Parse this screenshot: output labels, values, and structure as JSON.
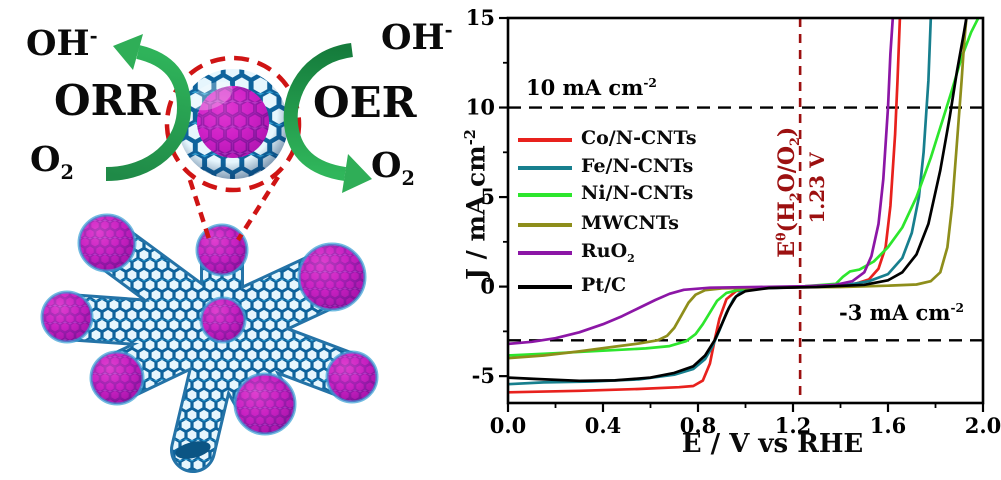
{
  "left_panel": {
    "oh_base": "OH",
    "oh_sup": "-",
    "orr_label": "ORR",
    "oer_label": "OER",
    "o2_base": "O",
    "o2_sub": "2",
    "colors": {
      "arrow_green": "#2aa352",
      "callout_red": "#cf1414",
      "nanotube_blue": "#2d9ace",
      "particle_magenta": "#cf16be"
    }
  },
  "chart_data": {
    "type": "line",
    "title": "",
    "xlabel": "E / V vs RHE",
    "ylabel": "J / mA cm⁻²",
    "ylabel_base": "J / mA cm",
    "ylabel_sup": "-2",
    "xlim": [
      0,
      2.0
    ],
    "ylim": [
      -6.5,
      15
    ],
    "grid": false,
    "legend_position": "upper-left-inside",
    "x_major_ticks": [
      0.0,
      0.4,
      0.8,
      1.2,
      1.6,
      2.0
    ],
    "x_tick_labels": [
      "0.0",
      "0.4",
      "0.8",
      "1.2",
      "1.6",
      "2.0"
    ],
    "x_minor_ticks": [
      0.2,
      0.6,
      1.0,
      1.4,
      1.8
    ],
    "y_major_ticks": [
      15,
      10,
      5,
      0,
      -5
    ],
    "y_tick_labels": [
      "15",
      "10",
      "5",
      "0",
      "-5"
    ],
    "y_minor_ticks": [
      12.5,
      7.5,
      2.5,
      -2.5
    ],
    "hlines": [
      {
        "j": 10,
        "color": "#000000",
        "label": "10 mA cm⁻²",
        "label_base": "10 mA cm",
        "label_sup": "-2"
      },
      {
        "j": -3,
        "color": "#000000",
        "label": "-3 mA cm⁻²",
        "label_base": "-3 mA cm",
        "label_sup": "-2"
      }
    ],
    "vline": {
      "e": 1.23,
      "color": "#9c1010",
      "label": "Eθ(H₂O/O₂)",
      "label_e": "E",
      "label_sup": "θ",
      "label_p1": "(H",
      "label_s1": "2",
      "label_p2": "O/O",
      "label_s2": "2",
      "label_p3": ")",
      "voltage_label": "1.23 V"
    },
    "series": [
      {
        "name": "Co/N-CNTs",
        "color": "#e8211d",
        "points": [
          [
            0,
            -5.9
          ],
          [
            0.3,
            -5.82
          ],
          [
            0.55,
            -5.72
          ],
          [
            0.72,
            -5.62
          ],
          [
            0.78,
            -5.55
          ],
          [
            0.82,
            -5.25
          ],
          [
            0.85,
            -4.3
          ],
          [
            0.87,
            -3.0
          ],
          [
            0.89,
            -1.8
          ],
          [
            0.92,
            -0.7
          ],
          [
            0.96,
            -0.25
          ],
          [
            1.02,
            -0.1
          ],
          [
            1.2,
            -0.04
          ],
          [
            1.35,
            0
          ],
          [
            1.45,
            0.1
          ],
          [
            1.52,
            0.4
          ],
          [
            1.56,
            1.0
          ],
          [
            1.59,
            2.2
          ],
          [
            1.61,
            4.5
          ],
          [
            1.63,
            8.5
          ],
          [
            1.64,
            11.5
          ],
          [
            1.65,
            15
          ]
        ]
      },
      {
        "name": "Fe/N-CNTs",
        "color": "#177f8e",
        "points": [
          [
            0,
            -5.45
          ],
          [
            0.15,
            -5.35
          ],
          [
            0.35,
            -5.3
          ],
          [
            0.55,
            -5.18
          ],
          [
            0.7,
            -4.92
          ],
          [
            0.78,
            -4.6
          ],
          [
            0.83,
            -4.05
          ],
          [
            0.86,
            -3.35
          ],
          [
            0.89,
            -2.45
          ],
          [
            0.92,
            -1.45
          ],
          [
            0.95,
            -0.7
          ],
          [
            0.98,
            -0.3
          ],
          [
            1.05,
            -0.1
          ],
          [
            1.25,
            -0.02
          ],
          [
            1.42,
            0.08
          ],
          [
            1.52,
            0.3
          ],
          [
            1.6,
            0.7
          ],
          [
            1.66,
            1.6
          ],
          [
            1.7,
            3.0
          ],
          [
            1.73,
            5.0
          ],
          [
            1.75,
            7.5
          ],
          [
            1.77,
            11.5
          ],
          [
            1.78,
            15
          ]
        ]
      },
      {
        "name": "Ni/N-CNTs",
        "color": "#2de62d",
        "points": [
          [
            0,
            -3.85
          ],
          [
            0.2,
            -3.72
          ],
          [
            0.4,
            -3.58
          ],
          [
            0.58,
            -3.45
          ],
          [
            0.68,
            -3.32
          ],
          [
            0.75,
            -3.05
          ],
          [
            0.79,
            -2.65
          ],
          [
            0.82,
            -2.1
          ],
          [
            0.85,
            -1.45
          ],
          [
            0.88,
            -0.8
          ],
          [
            0.92,
            -0.35
          ],
          [
            0.98,
            -0.15
          ],
          [
            1.1,
            -0.05
          ],
          [
            1.25,
            0.02
          ],
          [
            1.38,
            0.15
          ],
          [
            1.41,
            0.55
          ],
          [
            1.44,
            0.85
          ],
          [
            1.48,
            0.95
          ],
          [
            1.54,
            1.4
          ],
          [
            1.6,
            2.2
          ],
          [
            1.66,
            3.3
          ],
          [
            1.72,
            5.0
          ],
          [
            1.78,
            7.2
          ],
          [
            1.83,
            9.3
          ],
          [
            1.87,
            11.0
          ],
          [
            1.91,
            12.8
          ],
          [
            1.95,
            14.2
          ],
          [
            1.98,
            15
          ]
        ]
      },
      {
        "name": "MWCNTs",
        "color": "#8e8e1b",
        "points": [
          [
            0,
            -4.0
          ],
          [
            0.15,
            -3.85
          ],
          [
            0.3,
            -3.62
          ],
          [
            0.45,
            -3.35
          ],
          [
            0.55,
            -3.18
          ],
          [
            0.63,
            -3.0
          ],
          [
            0.67,
            -2.75
          ],
          [
            0.7,
            -2.3
          ],
          [
            0.73,
            -1.6
          ],
          [
            0.76,
            -0.9
          ],
          [
            0.79,
            -0.45
          ],
          [
            0.83,
            -0.2
          ],
          [
            0.9,
            -0.1
          ],
          [
            1.1,
            -0.05
          ],
          [
            1.4,
            -0.02
          ],
          [
            1.6,
            0.05
          ],
          [
            1.72,
            0.12
          ],
          [
            1.78,
            0.3
          ],
          [
            1.82,
            0.8
          ],
          [
            1.85,
            2.2
          ],
          [
            1.87,
            4.5
          ],
          [
            1.89,
            8.0
          ],
          [
            1.91,
            11.5
          ],
          [
            1.92,
            13.5
          ],
          [
            1.93,
            15
          ]
        ]
      },
      {
        "name": "RuO",
        "name_sub": "2",
        "color": "#8c16a6",
        "points": [
          [
            0,
            -3.2
          ],
          [
            0.1,
            -3.08
          ],
          [
            0.2,
            -2.88
          ],
          [
            0.3,
            -2.55
          ],
          [
            0.4,
            -2.1
          ],
          [
            0.48,
            -1.65
          ],
          [
            0.55,
            -1.2
          ],
          [
            0.62,
            -0.75
          ],
          [
            0.68,
            -0.4
          ],
          [
            0.74,
            -0.18
          ],
          [
            0.85,
            -0.06
          ],
          [
            1.05,
            -0.02
          ],
          [
            1.25,
            0.02
          ],
          [
            1.38,
            0.1
          ],
          [
            1.45,
            0.3
          ],
          [
            1.5,
            0.8
          ],
          [
            1.53,
            1.7
          ],
          [
            1.56,
            3.5
          ],
          [
            1.58,
            6.0
          ],
          [
            1.6,
            10.0
          ],
          [
            1.61,
            13.0
          ],
          [
            1.62,
            15
          ]
        ]
      },
      {
        "name": "Pt/C",
        "color": "#000000",
        "points": [
          [
            0,
            -5.08
          ],
          [
            0.12,
            -5.16
          ],
          [
            0.3,
            -5.26
          ],
          [
            0.45,
            -5.24
          ],
          [
            0.6,
            -5.08
          ],
          [
            0.7,
            -4.82
          ],
          [
            0.78,
            -4.45
          ],
          [
            0.83,
            -3.85
          ],
          [
            0.87,
            -3.0
          ],
          [
            0.9,
            -2.1
          ],
          [
            0.93,
            -1.2
          ],
          [
            0.96,
            -0.55
          ],
          [
            1.0,
            -0.25
          ],
          [
            1.1,
            -0.08
          ],
          [
            1.3,
            -0.02
          ],
          [
            1.5,
            0.1
          ],
          [
            1.6,
            0.35
          ],
          [
            1.66,
            0.8
          ],
          [
            1.72,
            1.8
          ],
          [
            1.77,
            3.5
          ],
          [
            1.82,
            6.5
          ],
          [
            1.86,
            9.5
          ],
          [
            1.89,
            12.0
          ],
          [
            1.92,
            14.2
          ],
          [
            1.93,
            15
          ]
        ]
      }
    ]
  }
}
